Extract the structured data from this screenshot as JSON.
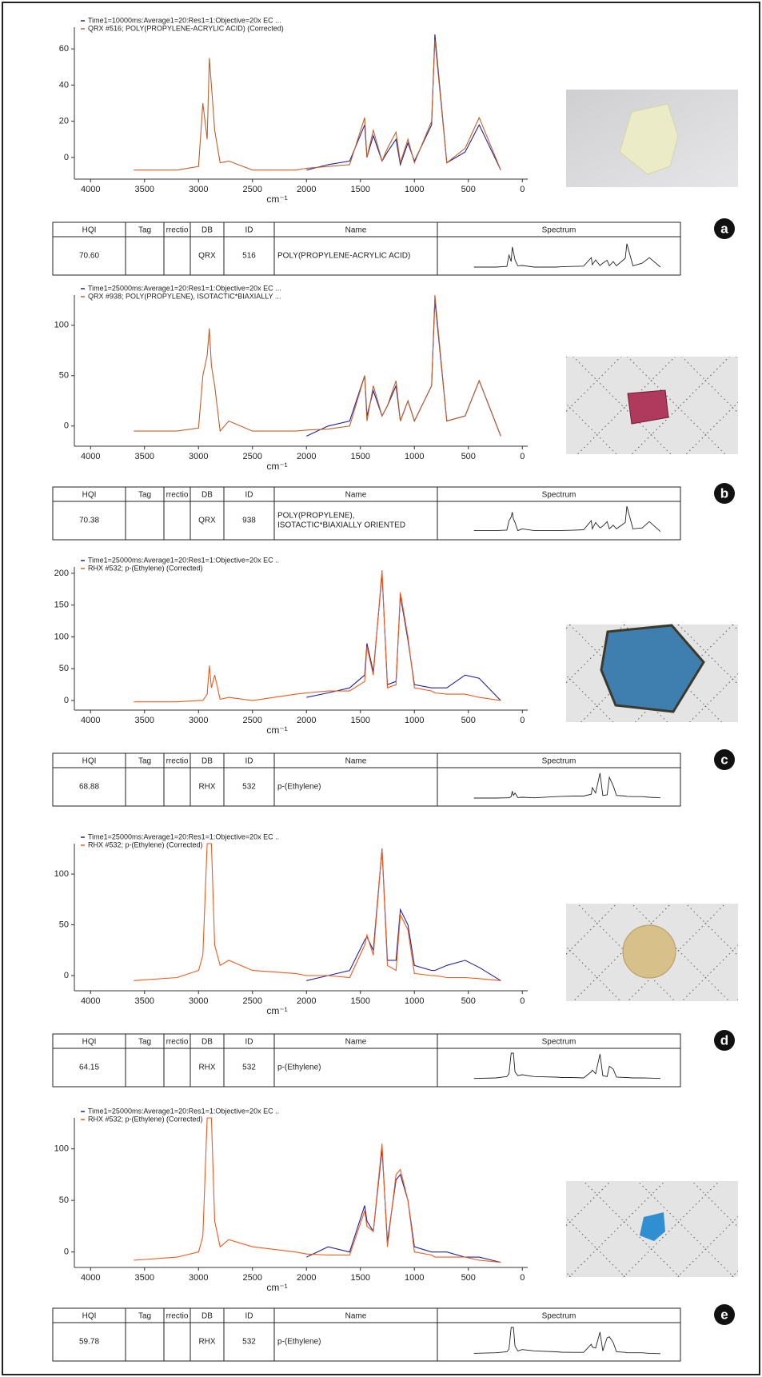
{
  "chart_data": [
    {
      "type": "line",
      "xlabel": "cm⁻¹",
      "xlim": [
        4150,
        -50
      ],
      "xticks": [
        4000,
        3500,
        3000,
        2500,
        2000,
        1500,
        1000,
        500,
        0
      ],
      "ylim": [
        -12,
        72
      ],
      "yticks": [
        0,
        20,
        40,
        60
      ],
      "x": [
        3600,
        3200,
        3000,
        2960,
        2920,
        2900,
        2880,
        2850,
        2800,
        2720,
        2500,
        2100,
        2000,
        1800,
        1600,
        1460,
        1440,
        1380,
        1300,
        1250,
        1170,
        1130,
        1060,
        1000,
        840,
        810,
        700,
        530,
        400,
        200
      ],
      "series": [
        {
          "name": "Time1=10000ms:Average1=20:Res1=1:Objective=20x EC ...",
          "color": "#23239a",
          "values": [
            null,
            null,
            null,
            null,
            null,
            null,
            null,
            null,
            null,
            null,
            null,
            null,
            -7,
            -4,
            -2,
            18,
            0,
            12,
            -2,
            3,
            10,
            -4,
            8,
            -2,
            18,
            68,
            -3,
            3,
            18,
            -7
          ]
        },
        {
          "name": "QRX #516; POLY(PROPYLENE-ACRYLIC ACID) (Corrected)",
          "color": "#c0602a",
          "values": [
            -7,
            -7,
            -5,
            30,
            10,
            55,
            40,
            15,
            -3,
            -2,
            -7,
            -7,
            -6,
            -5,
            -4,
            22,
            0,
            15,
            -2,
            5,
            14,
            -3,
            10,
            -3,
            20,
            65,
            -3,
            5,
            22,
            -7
          ]
        }
      ]
    },
    {
      "type": "line",
      "xlabel": "cm⁻¹",
      "xlim": [
        4150,
        -50
      ],
      "xticks": [
        4000,
        3500,
        3000,
        2500,
        2000,
        1500,
        1000,
        500,
        0
      ],
      "ylim": [
        -20,
        130
      ],
      "yticks": [
        0,
        50,
        100
      ],
      "x": [
        3600,
        3200,
        3000,
        2960,
        2920,
        2900,
        2880,
        2850,
        2800,
        2720,
        2500,
        2100,
        2000,
        1800,
        1600,
        1460,
        1440,
        1380,
        1300,
        1250,
        1170,
        1130,
        1060,
        1000,
        840,
        810,
        700,
        530,
        400,
        200
      ],
      "series": [
        {
          "name": "Time1=25000ms:Average1=20:Res1=1:Objective=20x EC ...",
          "color": "#23239a",
          "values": [
            null,
            null,
            null,
            null,
            null,
            null,
            null,
            null,
            null,
            null,
            null,
            null,
            -10,
            0,
            5,
            50,
            10,
            35,
            10,
            20,
            40,
            5,
            25,
            5,
            40,
            125,
            5,
            10,
            45,
            -10
          ]
        },
        {
          "name": "QRX #938; POLY(PROPYLENE), ISOTACTIC*BIAXIALLY ...",
          "color": "#c0602a",
          "values": [
            -5,
            -5,
            -2,
            50,
            70,
            97,
            60,
            40,
            -5,
            5,
            -5,
            -5,
            -4,
            -3,
            0,
            50,
            5,
            40,
            10,
            20,
            45,
            5,
            25,
            5,
            40,
            130,
            5,
            10,
            45,
            -10
          ]
        }
      ]
    },
    {
      "type": "line",
      "xlabel": "cm⁻¹",
      "xlim": [
        4150,
        -50
      ],
      "xticks": [
        4000,
        3500,
        3000,
        2500,
        2000,
        1500,
        1000,
        500,
        0
      ],
      "ylim": [
        -15,
        210
      ],
      "yticks": [
        0,
        50,
        100,
        150,
        200
      ],
      "x": [
        3600,
        3200,
        3000,
        2960,
        2920,
        2900,
        2880,
        2850,
        2800,
        2720,
        2500,
        2100,
        2000,
        1800,
        1600,
        1460,
        1440,
        1380,
        1300,
        1250,
        1170,
        1130,
        1060,
        1000,
        840,
        810,
        700,
        530,
        400,
        200
      ],
      "series": [
        {
          "name": "Time1=25000ms:Average1=20:Res1=1:Objective=20x EC ..",
          "color": "#23239a",
          "values": [
            null,
            null,
            null,
            null,
            null,
            null,
            null,
            null,
            null,
            null,
            null,
            null,
            5,
            12,
            20,
            40,
            90,
            45,
            200,
            25,
            30,
            165,
            95,
            25,
            20,
            20,
            20,
            40,
            35,
            0
          ]
        },
        {
          "name": "RHX #532; p-(Ethylene) (Corrected)",
          "color": "#f05a1e",
          "values": [
            -2,
            -2,
            0,
            0,
            10,
            55,
            20,
            40,
            2,
            5,
            0,
            10,
            12,
            15,
            15,
            30,
            85,
            40,
            205,
            20,
            25,
            170,
            100,
            20,
            15,
            12,
            10,
            10,
            5,
            0
          ]
        }
      ]
    },
    {
      "type": "line",
      "xlabel": "cm⁻¹",
      "xlim": [
        4150,
        -50
      ],
      "xticks": [
        4000,
        3500,
        3000,
        2500,
        2000,
        1500,
        1000,
        500,
        0
      ],
      "ylim": [
        -15,
        130
      ],
      "yticks": [
        0,
        50,
        100
      ],
      "x": [
        3600,
        3200,
        3000,
        2960,
        2920,
        2900,
        2880,
        2850,
        2800,
        2720,
        2500,
        2100,
        2000,
        1800,
        1600,
        1460,
        1440,
        1380,
        1300,
        1250,
        1170,
        1130,
        1060,
        1000,
        840,
        810,
        700,
        530,
        400,
        200
      ],
      "series": [
        {
          "name": "Time1=25000ms:Average1=20:Res1=1:Objective=20x EC ..",
          "color": "#23239a",
          "values": [
            null,
            null,
            null,
            null,
            null,
            null,
            null,
            null,
            null,
            null,
            null,
            null,
            -5,
            0,
            5,
            35,
            38,
            25,
            125,
            15,
            15,
            65,
            50,
            10,
            5,
            5,
            10,
            15,
            8,
            -5
          ]
        },
        {
          "name": "RHX #532; p-(Ethylene) (Corrected)",
          "color": "#f05a1e",
          "values": [
            -5,
            -2,
            5,
            20,
            130,
            130,
            130,
            30,
            10,
            15,
            5,
            2,
            0,
            0,
            -2,
            30,
            40,
            20,
            125,
            10,
            5,
            60,
            45,
            2,
            0,
            0,
            -2,
            -2,
            -3,
            -5
          ]
        }
      ]
    },
    {
      "type": "line",
      "xlabel": "cm⁻¹",
      "xlim": [
        4150,
        -50
      ],
      "xticks": [
        4000,
        3500,
        3000,
        2500,
        2000,
        1500,
        1000,
        500,
        0
      ],
      "ylim": [
        -15,
        130
      ],
      "yticks": [
        0,
        50,
        100
      ],
      "x": [
        3600,
        3200,
        3000,
        2960,
        2920,
        2900,
        2880,
        2850,
        2800,
        2720,
        2500,
        2100,
        2000,
        1800,
        1600,
        1460,
        1440,
        1380,
        1300,
        1250,
        1170,
        1130,
        1060,
        1000,
        840,
        810,
        700,
        530,
        400,
        200
      ],
      "series": [
        {
          "name": "Time1=25000ms:Average1=20:Res1=1:Objective=20x EC ..",
          "color": "#23239a",
          "values": [
            null,
            null,
            null,
            null,
            null,
            null,
            null,
            null,
            null,
            null,
            null,
            null,
            -5,
            5,
            0,
            45,
            30,
            20,
            100,
            10,
            70,
            75,
            50,
            5,
            0,
            0,
            0,
            -5,
            -5,
            -10
          ]
        },
        {
          "name": "RHX #532; p-(Ethylene) (Corrected)",
          "color": "#f05a1e",
          "values": [
            -8,
            -5,
            0,
            15,
            130,
            130,
            130,
            30,
            5,
            12,
            5,
            0,
            -2,
            -3,
            -3,
            40,
            25,
            20,
            105,
            5,
            75,
            80,
            50,
            0,
            -3,
            -5,
            -5,
            -5,
            -8,
            -10
          ]
        }
      ]
    }
  ],
  "tables": [
    {
      "columns": [
        "HQI",
        "Tag",
        "rrectio",
        "DB",
        "ID",
        "Name",
        "Spectrum"
      ],
      "row": {
        "hqi": "70.60",
        "db": "QRX",
        "id": 516,
        "name": [
          "POLY(PROPYLENE-ACRYLIC ACID)"
        ]
      }
    },
    {
      "columns": [
        "HQI",
        "Tag",
        "rrectio",
        "DB",
        "ID",
        "Name",
        "Spectrum"
      ],
      "row": {
        "hqi": "70.38",
        "db": "QRX",
        "id": 938,
        "name": [
          "POLY(PROPYLENE),",
          "ISOTACTIC*BIAXIALLY ORIENTED"
        ]
      }
    },
    {
      "columns": [
        "HQI",
        "Tag",
        "rrectio",
        "DB",
        "ID",
        "Name",
        "Spectrum"
      ],
      "row": {
        "hqi": "68.88",
        "db": "RHX",
        "id": 532,
        "name": [
          "p-(Ethylene)"
        ]
      }
    },
    {
      "columns": [
        "HQI",
        "Tag",
        "rrectio",
        "DB",
        "ID",
        "Name",
        "Spectrum"
      ],
      "row": {
        "hqi": "64.15",
        "db": "RHX",
        "id": 532,
        "name": [
          "p-(Ethylene)"
        ]
      }
    },
    {
      "columns": [
        "HQI",
        "Tag",
        "rrectio",
        "DB",
        "ID",
        "Name",
        "Spectrum"
      ],
      "row": {
        "hqi": "59.78",
        "db": "RHX",
        "id": 532,
        "name": [
          "p-(Ethylene)"
        ]
      }
    }
  ],
  "panel_labels": [
    "a",
    "b",
    "c",
    "d",
    "e"
  ]
}
